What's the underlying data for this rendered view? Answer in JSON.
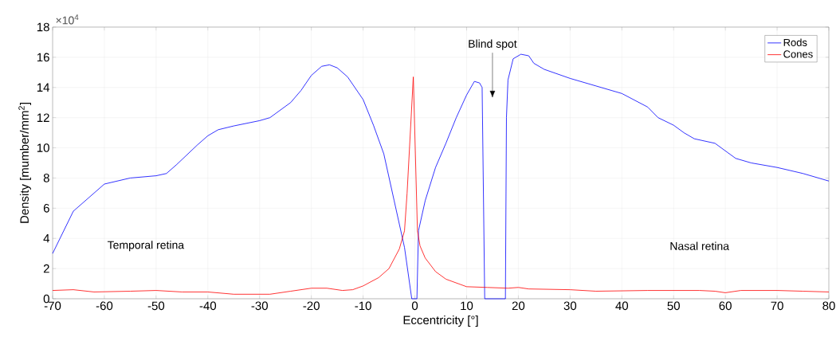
{
  "chart_data": {
    "type": "line",
    "xlabel": "Eccentricity [°]",
    "ylabel": "Density [mumber/mm$^{2}$]",
    "xlim": [
      -70,
      80
    ],
    "xticks": [
      -70,
      -60,
      -50,
      -40,
      -30,
      -20,
      -10,
      0,
      10,
      20,
      30,
      40,
      50,
      60,
      70,
      80
    ],
    "ylim": [
      0,
      18
    ],
    "yticks": [
      0,
      2,
      4,
      6,
      8,
      10,
      12,
      14,
      16,
      18
    ],
    "grid": true,
    "legend": "top right",
    "marker": "none",
    "line_style": "solid",
    "annotations": [
      "×10$^{4}$",
      "Temporal retina",
      "Nasal retina",
      "Blind spot"
    ],
    "series": [
      {
        "name": "Rods",
        "color": "#0000ff",
        "x": [
          -70,
          -66,
          -60,
          -55,
          -50,
          -48,
          -46,
          -42,
          -40,
          -38,
          -35,
          -30,
          -28,
          -24,
          -22,
          -20,
          -18,
          -16.5,
          -15,
          -13,
          -10,
          -8,
          -6,
          -4,
          -2,
          -0.6,
          0.4,
          0.7,
          2,
          4,
          6,
          8,
          10,
          11.5,
          12.5,
          13,
          13.5,
          17.5,
          17.7,
          18,
          19,
          20.5,
          22,
          23,
          25,
          30,
          35,
          40,
          45,
          47,
          50,
          52,
          54,
          58,
          60,
          62,
          65,
          70,
          75,
          80
        ],
        "values": [
          3.0,
          5.8,
          7.6,
          8.0,
          8.15,
          8.3,
          8.9,
          10.2,
          10.8,
          11.2,
          11.45,
          11.8,
          12.0,
          13.0,
          13.8,
          14.8,
          15.4,
          15.5,
          15.3,
          14.7,
          13.2,
          11.5,
          9.6,
          6.5,
          3.4,
          0,
          0,
          4.5,
          6.5,
          8.7,
          10.3,
          12.0,
          13.5,
          14.4,
          14.3,
          14.0,
          0,
          0,
          12,
          14.5,
          15.9,
          16.2,
          16.1,
          15.6,
          15.2,
          14.6,
          14.1,
          13.6,
          12.7,
          12.0,
          11.5,
          11.0,
          10.6,
          10.3,
          9.8,
          9.3,
          9.0,
          8.7,
          8.3,
          7.8
        ]
      },
      {
        "name": "Cones",
        "color": "#ff0000",
        "x": [
          -70,
          -66,
          -62,
          -55,
          -50,
          -45,
          -40,
          -35,
          -28,
          -24,
          -20,
          -17,
          -14,
          -12,
          -10,
          -7,
          -5,
          -3,
          -2,
          -1.5,
          -0.3,
          0.5,
          1,
          2,
          4,
          6,
          10,
          14,
          18,
          20,
          22,
          30,
          35,
          45,
          55,
          58,
          60,
          63,
          70,
          75,
          80
        ],
        "values": [
          0.55,
          0.6,
          0.45,
          0.5,
          0.55,
          0.45,
          0.45,
          0.3,
          0.3,
          0.5,
          0.7,
          0.7,
          0.55,
          0.6,
          0.85,
          1.4,
          2.0,
          3.3,
          4.5,
          7,
          14.7,
          4.5,
          3.5,
          2.7,
          1.8,
          1.3,
          0.8,
          0.75,
          0.7,
          0.75,
          0.65,
          0.6,
          0.5,
          0.55,
          0.55,
          0.5,
          0.4,
          0.55,
          0.55,
          0.5,
          0.45
        ]
      }
    ]
  }
}
